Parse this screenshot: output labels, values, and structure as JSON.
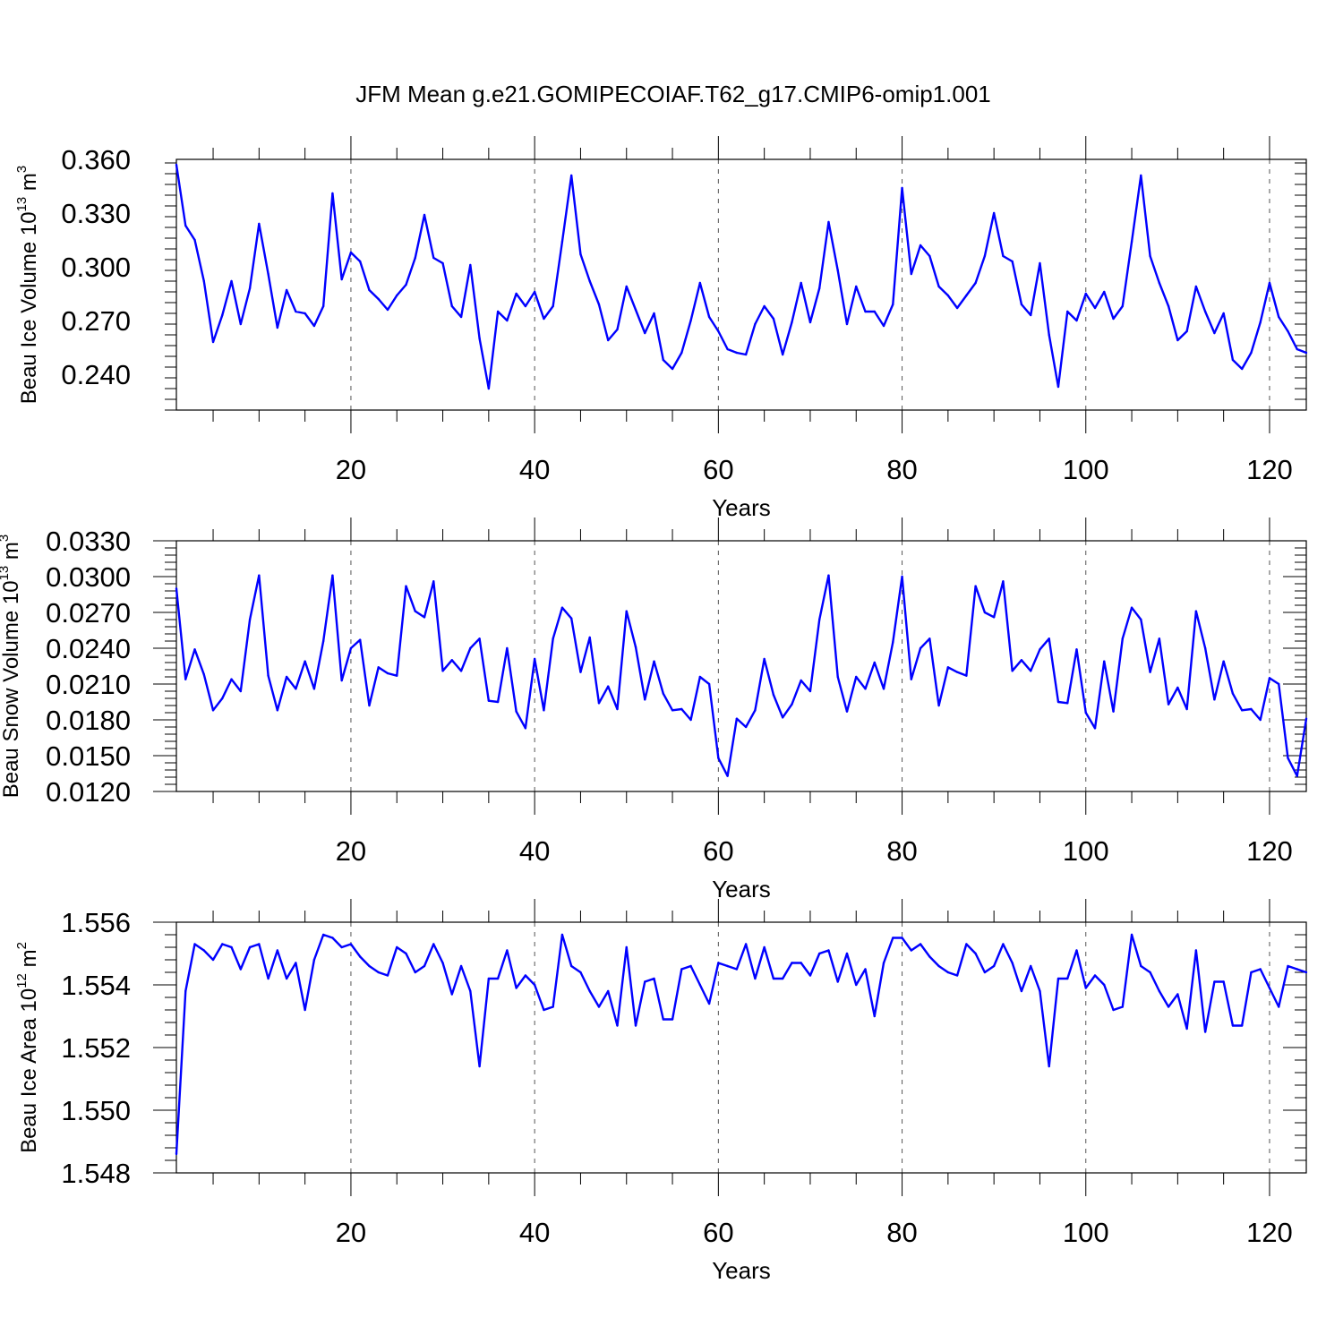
{
  "title": "JFM Mean g.e21.GOMIPECOIAF.T62_g17.CMIP6-omip1.001",
  "colors": {
    "line": "#0000ff",
    "axis": "#000000",
    "grid": "#555555"
  },
  "chart_data": [
    {
      "type": "line",
      "id": "ice-volume",
      "ylabel_prefix": "Beau Ice Volume 10",
      "ylabel_exp": "13",
      "ylabel_unit": " m",
      "ylabel_unit_exp": "3",
      "xlabel": "Years",
      "xlim": [
        1,
        124
      ],
      "ylim": [
        0.22,
        0.36
      ],
      "xticks": [
        20,
        40,
        60,
        80,
        100,
        120
      ],
      "xtick_labels": [
        "20",
        "40",
        "60",
        "80",
        "100",
        "120"
      ],
      "yticks": [
        0.24,
        0.27,
        0.3,
        0.33,
        0.36
      ],
      "ytick_labels": [
        "0.240",
        "0.270",
        "0.300",
        "0.330",
        "0.360"
      ],
      "grid": "vertical-dashed",
      "series": [
        {
          "name": "Beau Ice Volume",
          "x_start": 1,
          "values": [
            0.357,
            0.323,
            0.315,
            0.292,
            0.258,
            0.273,
            0.292,
            0.268,
            0.288,
            0.324,
            0.296,
            0.266,
            0.287,
            0.275,
            0.274,
            0.267,
            0.278,
            0.341,
            0.293,
            0.308,
            0.303,
            0.287,
            0.282,
            0.276,
            0.284,
            0.29,
            0.305,
            0.329,
            0.305,
            0.302,
            0.278,
            0.272,
            0.301,
            0.26,
            0.232,
            0.275,
            0.27,
            0.285,
            0.278,
            0.286,
            0.271,
            0.278,
            0.314,
            0.351,
            0.307,
            0.292,
            0.279,
            0.259,
            0.265,
            0.289,
            0.276,
            0.263,
            0.274,
            0.248,
            0.243,
            0.252,
            0.27,
            0.291,
            0.272,
            0.264,
            0.254,
            0.252,
            0.251,
            0.268,
            0.278,
            0.271,
            0.251,
            0.269,
            0.291,
            0.269,
            0.288,
            0.325,
            0.298,
            0.268,
            0.289,
            0.275,
            0.275,
            0.267,
            0.279,
            0.344,
            0.296,
            0.312,
            0.306,
            0.289,
            0.284,
            0.277,
            0.284,
            0.291,
            0.306,
            0.33,
            0.306,
            0.303,
            0.279,
            0.273,
            0.302,
            0.262,
            0.233,
            0.275,
            0.27,
            0.285,
            0.277,
            0.286,
            0.271,
            0.278,
            0.314,
            0.351,
            0.306,
            0.291,
            0.278,
            0.259,
            0.264,
            0.289,
            0.275,
            0.263,
            0.274,
            0.248,
            0.243,
            0.252,
            0.269,
            0.291,
            0.272,
            0.264,
            0.254,
            0.252
          ]
        }
      ]
    },
    {
      "type": "line",
      "id": "snow-volume",
      "ylabel_prefix": "Beau Snow Volume 10",
      "ylabel_exp": "13",
      "ylabel_unit": " m",
      "ylabel_unit_exp": "3",
      "xlabel": "Years",
      "xlim": [
        1,
        124
      ],
      "ylim": [
        0.012,
        0.033
      ],
      "xticks": [
        20,
        40,
        60,
        80,
        100,
        120
      ],
      "xtick_labels": [
        "20",
        "40",
        "60",
        "80",
        "100",
        "120"
      ],
      "yticks": [
        0.012,
        0.015,
        0.018,
        0.021,
        0.024,
        0.027,
        0.03,
        0.033
      ],
      "ytick_labels": [
        "0.0120",
        "0.0150",
        "0.0180",
        "0.0210",
        "0.0240",
        "0.0270",
        "0.0300",
        "0.0330"
      ],
      "grid": "vertical-dashed",
      "series": [
        {
          "name": "Beau Snow Volume",
          "x_start": 1,
          "values": [
            0.029,
            0.0214,
            0.0239,
            0.0218,
            0.0188,
            0.0198,
            0.0214,
            0.0204,
            0.0264,
            0.0301,
            0.0217,
            0.0188,
            0.0216,
            0.0206,
            0.0229,
            0.0206,
            0.0246,
            0.0301,
            0.0213,
            0.024,
            0.0247,
            0.0192,
            0.0224,
            0.0219,
            0.0217,
            0.0292,
            0.0271,
            0.0266,
            0.0296,
            0.0221,
            0.023,
            0.0221,
            0.024,
            0.0248,
            0.0196,
            0.0195,
            0.024,
            0.0187,
            0.0173,
            0.0231,
            0.0188,
            0.0248,
            0.0274,
            0.0265,
            0.022,
            0.0249,
            0.0194,
            0.0208,
            0.0189,
            0.0271,
            0.0241,
            0.0197,
            0.0229,
            0.0202,
            0.0188,
            0.0189,
            0.018,
            0.0216,
            0.021,
            0.0148,
            0.0133,
            0.0181,
            0.0174,
            0.0188,
            0.0231,
            0.0201,
            0.0182,
            0.0193,
            0.0213,
            0.0204,
            0.0264,
            0.0301,
            0.0216,
            0.0187,
            0.0216,
            0.0206,
            0.0228,
            0.0206,
            0.0245,
            0.03,
            0.0214,
            0.024,
            0.0248,
            0.0192,
            0.0224,
            0.022,
            0.0217,
            0.0292,
            0.027,
            0.0266,
            0.0296,
            0.0221,
            0.023,
            0.0221,
            0.0239,
            0.0248,
            0.0195,
            0.0194,
            0.0239,
            0.0186,
            0.0173,
            0.0229,
            0.0187,
            0.0248,
            0.0274,
            0.0264,
            0.022,
            0.0248,
            0.0193,
            0.0207,
            0.0189,
            0.0271,
            0.024,
            0.0197,
            0.0229,
            0.0202,
            0.0188,
            0.0189,
            0.018,
            0.0215,
            0.021,
            0.0148,
            0.0133,
            0.0181
          ]
        }
      ]
    },
    {
      "type": "line",
      "id": "ice-area",
      "ylabel_prefix": "Beau Ice Area 10",
      "ylabel_exp": "12",
      "ylabel_unit": " m",
      "ylabel_unit_exp": "2",
      "xlabel": "Years",
      "xlim": [
        1,
        124
      ],
      "ylim": [
        1.548,
        1.556
      ],
      "xticks": [
        20,
        40,
        60,
        80,
        100,
        120
      ],
      "xtick_labels": [
        "20",
        "40",
        "60",
        "80",
        "100",
        "120"
      ],
      "yticks": [
        1.548,
        1.55,
        1.552,
        1.554,
        1.556
      ],
      "ytick_labels": [
        "1.548",
        "1.550",
        "1.552",
        "1.554",
        "1.556"
      ],
      "grid": "vertical-dashed",
      "series": [
        {
          "name": "Beau Ice Area",
          "x_start": 1,
          "values": [
            1.5486,
            1.5538,
            1.5553,
            1.5551,
            1.5548,
            1.5553,
            1.5552,
            1.5545,
            1.5552,
            1.5553,
            1.5542,
            1.5551,
            1.5542,
            1.5547,
            1.5532,
            1.5548,
            1.5556,
            1.5555,
            1.5552,
            1.5553,
            1.5549,
            1.5546,
            1.5544,
            1.5543,
            1.5552,
            1.555,
            1.5544,
            1.5546,
            1.5553,
            1.5547,
            1.5537,
            1.5546,
            1.5538,
            1.5514,
            1.5542,
            1.5542,
            1.5551,
            1.5539,
            1.5543,
            1.554,
            1.5532,
            1.5533,
            1.5556,
            1.5546,
            1.5544,
            1.5538,
            1.5533,
            1.5538,
            1.5527,
            1.5552,
            1.5527,
            1.5541,
            1.5542,
            1.5529,
            1.5529,
            1.5545,
            1.5546,
            1.554,
            1.5534,
            1.5547,
            1.5546,
            1.5545,
            1.5553,
            1.5542,
            1.5552,
            1.5542,
            1.5542,
            1.5547,
            1.5547,
            1.5543,
            1.555,
            1.5551,
            1.5541,
            1.555,
            1.554,
            1.5545,
            1.553,
            1.5547,
            1.5555,
            1.5555,
            1.5551,
            1.5553,
            1.5549,
            1.5546,
            1.5544,
            1.5543,
            1.5553,
            1.555,
            1.5544,
            1.5546,
            1.5553,
            1.5547,
            1.5538,
            1.5546,
            1.5538,
            1.5514,
            1.5542,
            1.5542,
            1.5551,
            1.5539,
            1.5543,
            1.554,
            1.5532,
            1.5533,
            1.5556,
            1.5546,
            1.5544,
            1.5538,
            1.5533,
            1.5537,
            1.5526,
            1.5551,
            1.5525,
            1.5541,
            1.5541,
            1.5527,
            1.5527,
            1.5544,
            1.5545,
            1.5539,
            1.5533,
            1.5546,
            1.5545,
            1.5544
          ]
        }
      ]
    }
  ]
}
